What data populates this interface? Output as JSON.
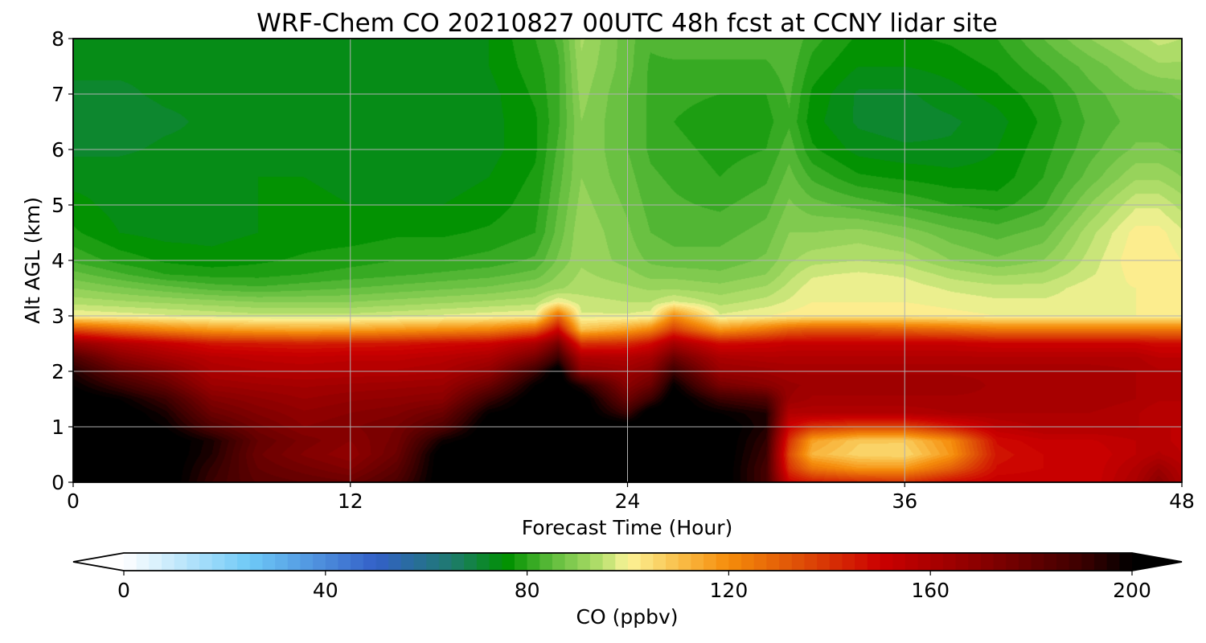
{
  "chart_data": {
    "type": "heatmap",
    "title": "WRF-Chem CO  20210827 00UTC 48h fcst at CCNY lidar site",
    "xlabel": "Forecast Time (Hour)",
    "ylabel": "Alt AGL (km)",
    "xlim": [
      0,
      48
    ],
    "ylim": [
      0,
      8
    ],
    "xticks": [
      0,
      12,
      24,
      36,
      48
    ],
    "yticks": [
      0,
      1,
      2,
      3,
      4,
      5,
      6,
      7,
      8
    ],
    "grid": true,
    "colorbar": {
      "label": "CO  (ppbv)",
      "min": 0,
      "max": 200,
      "step": 2.5,
      "ticks": [
        0,
        40,
        80,
        120,
        160,
        200
      ],
      "extend": "both",
      "orientation": "horizontal",
      "placement": "bottom",
      "anchor_colors": [
        {
          "value": 0,
          "color": "#ffffff"
        },
        {
          "value": 25,
          "color": "#6ec9f7"
        },
        {
          "value": 50,
          "color": "#3360c8"
        },
        {
          "value": 65,
          "color": "#1e7a6e"
        },
        {
          "value": 76,
          "color": "#009100"
        },
        {
          "value": 85,
          "color": "#5fbc3c"
        },
        {
          "value": 95,
          "color": "#b8e06e"
        },
        {
          "value": 100,
          "color": "#fcf498"
        },
        {
          "value": 110,
          "color": "#f9bf4a"
        },
        {
          "value": 120,
          "color": "#f58c0a"
        },
        {
          "value": 135,
          "color": "#dd4a07"
        },
        {
          "value": 150,
          "color": "#cc0000"
        },
        {
          "value": 170,
          "color": "#8a0000"
        },
        {
          "value": 190,
          "color": "#3c0000"
        },
        {
          "value": 200,
          "color": "#000000"
        }
      ]
    },
    "x": [
      0,
      2,
      4,
      6,
      8,
      10,
      12,
      14,
      16,
      18,
      20,
      21,
      22,
      24,
      25,
      26,
      28,
      30,
      31,
      32,
      34,
      36,
      38,
      40,
      42,
      44,
      46,
      47,
      48
    ],
    "y": [
      0,
      0.25,
      0.5,
      0.75,
      1,
      1.25,
      1.5,
      1.75,
      2,
      2.25,
      2.5,
      2.75,
      3,
      3.25,
      3.5,
      3.75,
      4,
      4.5,
      5,
      5.5,
      6,
      6.5,
      7,
      7.5,
      8
    ],
    "z": [
      [
        205,
        205,
        205,
        190,
        182,
        180,
        178,
        186,
        205,
        205,
        205,
        205,
        205,
        205,
        205,
        205,
        205,
        188,
        150,
        145,
        142,
        140,
        148,
        152,
        152,
        150,
        160,
        170,
        160
      ],
      [
        205,
        205,
        205,
        192,
        180,
        176,
        172,
        182,
        205,
        205,
        205,
        205,
        205,
        205,
        205,
        205,
        205,
        188,
        140,
        125,
        118,
        118,
        130,
        148,
        150,
        150,
        158,
        165,
        158
      ],
      [
        205,
        205,
        205,
        195,
        178,
        172,
        168,
        178,
        205,
        205,
        205,
        205,
        205,
        205,
        205,
        205,
        205,
        190,
        135,
        112,
        106,
        105,
        118,
        146,
        150,
        150,
        155,
        158,
        155
      ],
      [
        205,
        205,
        205,
        196,
        180,
        174,
        170,
        176,
        198,
        205,
        205,
        205,
        205,
        205,
        205,
        205,
        205,
        192,
        140,
        116,
        108,
        108,
        120,
        148,
        152,
        152,
        155,
        156,
        154
      ],
      [
        205,
        205,
        200,
        185,
        176,
        170,
        172,
        175,
        185,
        205,
        205,
        205,
        205,
        205,
        205,
        205,
        205,
        195,
        150,
        140,
        136,
        136,
        145,
        155,
        158,
        158,
        158,
        155,
        155
      ],
      [
        205,
        205,
        196,
        178,
        172,
        168,
        170,
        172,
        178,
        200,
        205,
        205,
        205,
        190,
        205,
        205,
        200,
        195,
        158,
        158,
        158,
        158,
        160,
        160,
        160,
        160,
        158,
        155,
        155
      ],
      [
        205,
        200,
        190,
        172,
        168,
        165,
        167,
        168,
        170,
        190,
        205,
        205,
        205,
        178,
        190,
        205,
        190,
        185,
        165,
        162,
        162,
        162,
        162,
        162,
        162,
        162,
        160,
        158,
        158
      ],
      [
        200,
        190,
        180,
        165,
        163,
        162,
        163,
        164,
        165,
        178,
        200,
        205,
        195,
        170,
        178,
        200,
        175,
        170,
        166,
        164,
        164,
        164,
        164,
        162,
        162,
        162,
        160,
        158,
        158
      ],
      [
        195,
        180,
        172,
        160,
        158,
        157,
        158,
        158,
        160,
        168,
        190,
        205,
        170,
        165,
        170,
        190,
        166,
        164,
        162,
        162,
        162,
        162,
        162,
        162,
        162,
        162,
        160,
        158,
        158
      ],
      [
        185,
        170,
        162,
        156,
        154,
        153,
        154,
        154,
        156,
        160,
        175,
        190,
        160,
        158,
        162,
        178,
        160,
        158,
        158,
        158,
        158,
        158,
        158,
        158,
        158,
        158,
        158,
        155,
        155
      ],
      [
        168,
        158,
        152,
        146,
        145,
        144,
        145,
        146,
        148,
        150,
        160,
        175,
        140,
        142,
        148,
        162,
        148,
        150,
        152,
        152,
        152,
        152,
        152,
        150,
        150,
        150,
        150,
        148,
        148
      ],
      [
        135,
        128,
        122,
        118,
        116,
        115,
        116,
        118,
        120,
        122,
        130,
        150,
        110,
        116,
        122,
        138,
        118,
        125,
        130,
        132,
        132,
        130,
        128,
        125,
        125,
        125,
        125,
        125,
        125
      ],
      [
        100,
        99,
        98,
        97,
        96,
        96,
        96,
        97,
        98,
        99,
        100,
        128,
        98,
        98,
        99,
        120,
        98,
        100,
        101,
        102,
        102,
        102,
        101,
        100,
        100,
        100,
        100,
        100,
        100
      ],
      [
        94,
        93,
        92,
        91,
        90,
        90,
        90,
        91,
        92,
        93,
        94,
        100,
        96,
        95,
        95,
        98,
        94,
        96,
        98,
        100,
        100,
        100,
        99,
        98,
        98,
        99,
        100,
        100,
        100
      ],
      [
        90,
        88,
        86,
        84,
        83,
        84,
        85,
        86,
        87,
        88,
        90,
        92,
        94,
        93,
        92,
        92,
        91,
        93,
        96,
        99,
        100,
        99,
        97,
        96,
        96,
        99,
        100,
        100,
        100
      ],
      [
        86,
        83,
        80,
        79,
        79,
        80,
        81,
        82,
        83,
        84,
        86,
        90,
        93,
        91,
        89,
        89,
        88,
        90,
        94,
        97,
        98,
        97,
        94,
        92,
        93,
        97,
        101,
        101,
        100
      ],
      [
        82,
        79,
        77,
        76,
        77,
        78,
        79,
        80,
        80,
        81,
        83,
        88,
        92,
        89,
        87,
        86,
        86,
        88,
        92,
        94,
        95,
        94,
        90,
        88,
        90,
        96,
        102,
        102,
        100
      ],
      [
        78,
        75,
        74,
        74,
        75,
        76,
        76,
        77,
        77,
        78,
        80,
        86,
        92,
        88,
        85,
        84,
        84,
        86,
        90,
        90,
        91,
        89,
        86,
        84,
        86,
        94,
        101,
        101,
        98
      ],
      [
        76,
        74,
        74,
        74,
        75,
        76,
        75,
        75,
        75,
        76,
        79,
        85,
        91,
        87,
        84,
        83,
        82,
        84,
        88,
        86,
        84,
        82,
        80,
        79,
        82,
        90,
        97,
        97,
        94
      ],
      [
        74,
        74,
        74,
        74,
        75,
        75,
        74,
        74,
        74,
        75,
        78,
        84,
        90,
        86,
        83,
        82,
        80,
        82,
        86,
        82,
        78,
        77,
        76,
        76,
        80,
        86,
        92,
        92,
        90
      ],
      [
        72,
        72,
        73,
        73,
        74,
        74,
        74,
        73,
        73,
        74,
        77,
        83,
        90,
        85,
        82,
        81,
        79,
        80,
        84,
        78,
        74,
        73,
        73,
        75,
        79,
        84,
        88,
        88,
        87
      ],
      [
        71,
        71,
        72,
        73,
        74,
        74,
        74,
        73,
        73,
        74,
        77,
        82,
        90,
        85,
        82,
        80,
        78,
        79,
        82,
        76,
        72,
        71,
        72,
        74,
        78,
        83,
        86,
        86,
        86
      ],
      [
        72,
        72,
        73,
        73,
        74,
        74,
        74,
        74,
        74,
        74,
        78,
        82,
        91,
        85,
        82,
        81,
        80,
        80,
        83,
        77,
        72,
        72,
        74,
        76,
        79,
        84,
        87,
        87,
        88
      ],
      [
        73,
        73,
        73,
        74,
        74,
        74,
        74,
        74,
        74,
        75,
        79,
        82,
        92,
        86,
        82,
        82,
        82,
        82,
        84,
        79,
        75,
        75,
        76,
        78,
        82,
        86,
        90,
        92,
        92
      ],
      [
        73,
        73,
        73,
        74,
        74,
        74,
        74,
        74,
        74,
        75,
        80,
        83,
        93,
        86,
        83,
        84,
        84,
        84,
        85,
        81,
        77,
        77,
        78,
        80,
        85,
        90,
        94,
        96,
        95
      ]
    ]
  }
}
